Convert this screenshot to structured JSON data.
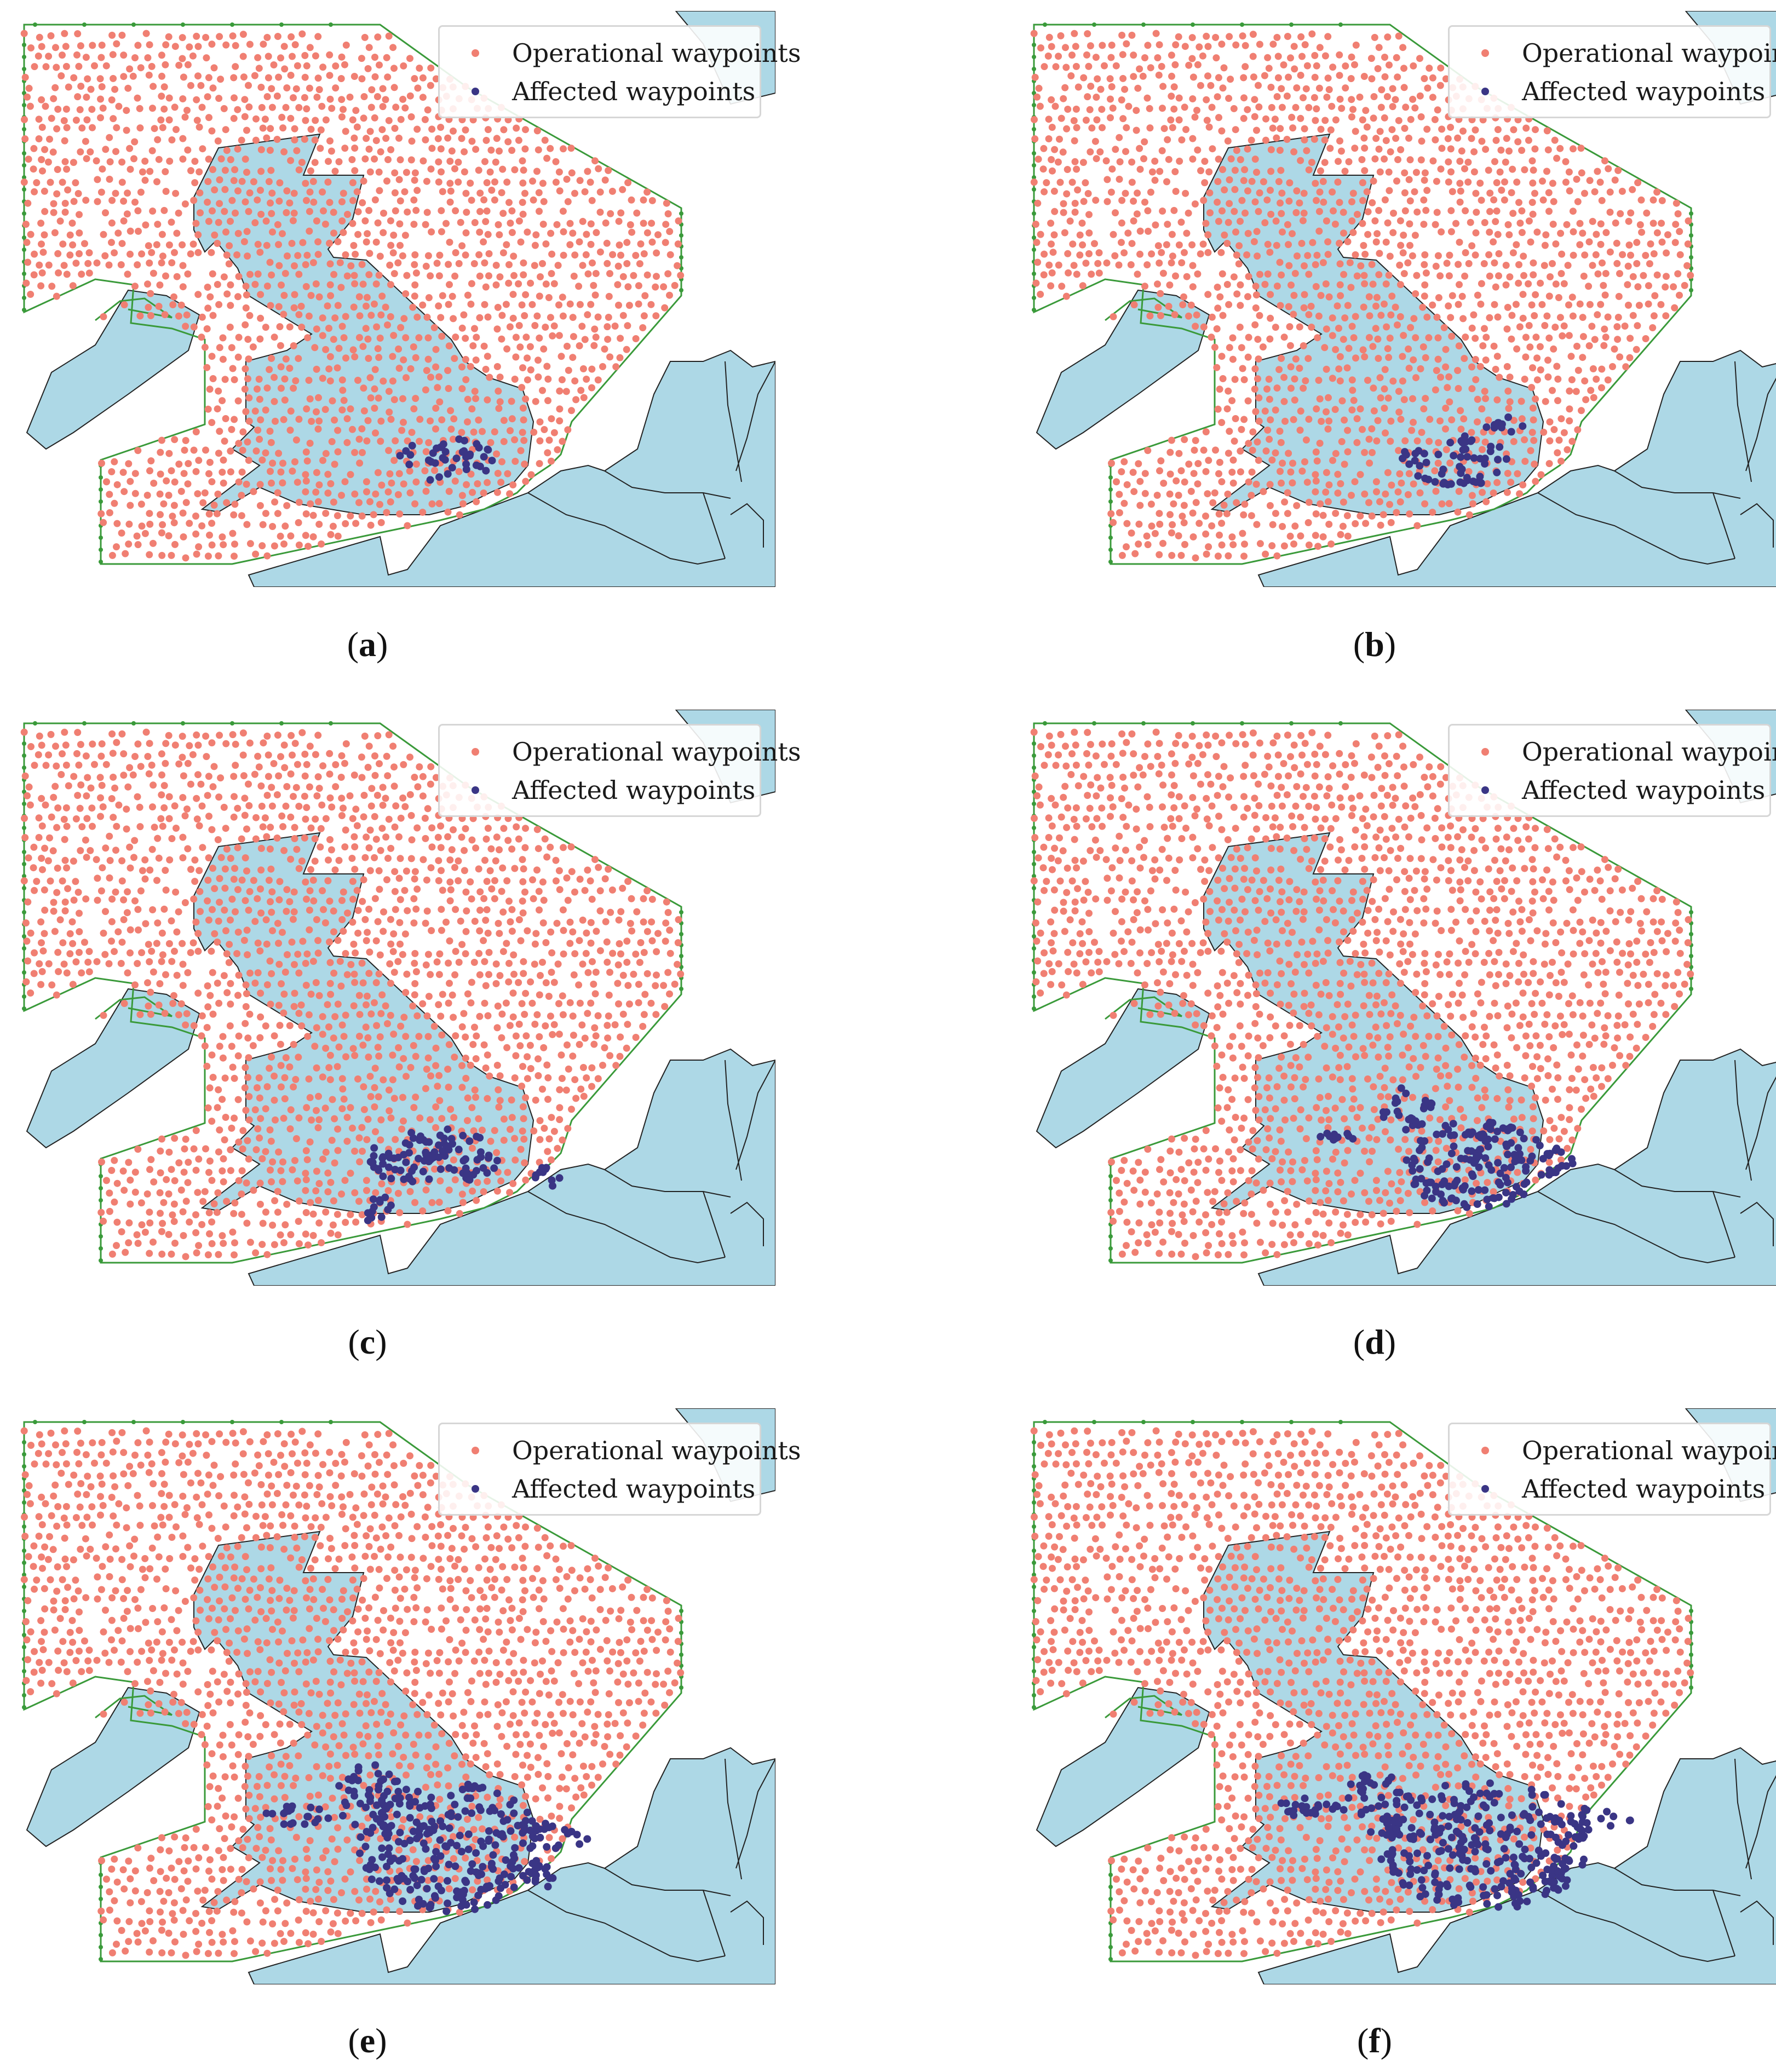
{
  "colors": {
    "water": "#add8e6",
    "operational": "#f07f72",
    "affected": "#3a3585",
    "boundary": "#3a9a3a",
    "coast": "#222222"
  },
  "legend": {
    "operational_label": "Operational waypoints",
    "affected_label": "Affected waypoints"
  },
  "panels": [
    {
      "id": "a",
      "caption": "a",
      "affected_level": 1
    },
    {
      "id": "b",
      "caption": "b",
      "affected_level": 2
    },
    {
      "id": "c",
      "caption": "c",
      "affected_level": 3
    },
    {
      "id": "d",
      "caption": "d",
      "affected_level": 4
    },
    {
      "id": "e",
      "caption": "e",
      "affected_level": 5
    },
    {
      "id": "f",
      "caption": "f",
      "affected_level": 6
    }
  ]
}
